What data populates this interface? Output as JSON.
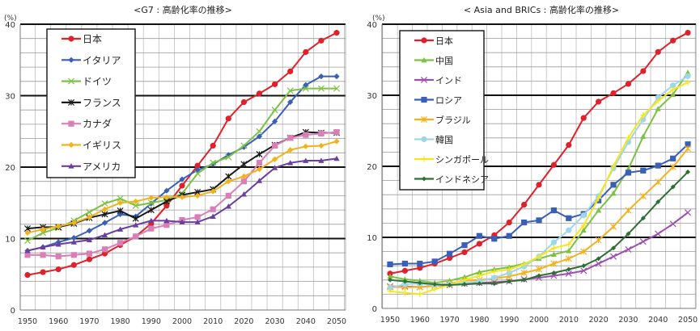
{
  "chart_data": [
    {
      "type": "line",
      "title": "<G7 : 高齢化率の推移>",
      "ylabel": "(%)",
      "xlabel": "",
      "ylim": [
        0,
        40
      ],
      "yticks": [
        0,
        10,
        20,
        30,
        40
      ],
      "xticks": [
        1950,
        1960,
        1970,
        1980,
        1990,
        2000,
        2010,
        2020,
        2030,
        2040,
        2050
      ],
      "x": [
        1950,
        1955,
        1960,
        1965,
        1970,
        1975,
        1980,
        1985,
        1990,
        1995,
        2000,
        2005,
        2010,
        2015,
        2020,
        2025,
        2030,
        2035,
        2040,
        2045,
        2050
      ],
      "grid": true,
      "legend": "top-left",
      "series": [
        {
          "name": "日本",
          "color": "#e0202a",
          "marker": "circle",
          "values": [
            4.9,
            5.3,
            5.7,
            6.3,
            7.1,
            7.9,
            9.1,
            10.3,
            12.1,
            14.6,
            17.4,
            20.2,
            23.0,
            26.8,
            29.1,
            30.3,
            31.6,
            33.4,
            36.1,
            37.7,
            38.8
          ]
        },
        {
          "name": "イタリア",
          "color": "#3a5fb8",
          "marker": "diamond",
          "values": [
            8.3,
            8.8,
            9.5,
            10.1,
            11.1,
            12.2,
            13.4,
            13.1,
            14.9,
            16.7,
            18.3,
            19.6,
            20.4,
            21.7,
            22.8,
            24.3,
            26.4,
            29.1,
            31.5,
            32.7,
            32.7
          ]
        },
        {
          "name": "ドイツ",
          "color": "#7cc242",
          "marker": "x",
          "values": [
            9.7,
            10.8,
            11.5,
            12.5,
            13.7,
            14.9,
            15.6,
            14.6,
            15.0,
            15.4,
            16.3,
            19.1,
            20.6,
            21.4,
            23.0,
            25.0,
            28.0,
            30.7,
            31.0,
            31.0,
            31.0
          ]
        },
        {
          "name": "フランス",
          "color": "#1a1a1a",
          "marker": "asterisk",
          "values": [
            11.4,
            11.6,
            11.6,
            12.1,
            12.9,
            13.4,
            13.9,
            12.8,
            14.0,
            15.2,
            16.1,
            16.5,
            16.9,
            18.7,
            20.4,
            21.8,
            23.1,
            24.1,
            24.9,
            24.8,
            24.8
          ]
        },
        {
          "name": "カナダ",
          "color": "#d97fb6",
          "marker": "square",
          "values": [
            7.7,
            7.7,
            7.5,
            7.7,
            7.9,
            8.5,
            9.4,
            10.3,
            11.4,
            11.9,
            12.6,
            13.0,
            14.1,
            16.0,
            18.0,
            20.6,
            23.0,
            24.1,
            24.5,
            24.7,
            24.9
          ]
        },
        {
          "name": "イギリス",
          "color": "#f2b21b",
          "marker": "diamond",
          "values": [
            10.8,
            11.3,
            11.7,
            12.2,
            13.0,
            14.1,
            15.0,
            15.2,
            15.7,
            15.8,
            15.8,
            16.0,
            16.6,
            18.0,
            18.7,
            19.7,
            21.1,
            22.4,
            22.9,
            23.0,
            23.6
          ]
        },
        {
          "name": "アメリカ",
          "color": "#6a3f9e",
          "marker": "triangle",
          "values": [
            8.3,
            8.8,
            9.2,
            9.5,
            9.8,
            10.5,
            11.3,
            11.9,
            12.5,
            12.5,
            12.3,
            12.3,
            13.1,
            14.5,
            16.2,
            18.1,
            19.9,
            20.6,
            20.9,
            20.9,
            21.2
          ]
        }
      ]
    },
    {
      "type": "line",
      "title": "< Asia and BRICs : 高齢化率の推移>",
      "ylabel": "(%)",
      "xlabel": "",
      "ylim": [
        0,
        40
      ],
      "yticks": [
        0,
        10,
        20,
        30,
        40
      ],
      "xticks": [
        1950,
        1960,
        1970,
        1980,
        1990,
        2000,
        2010,
        2020,
        2030,
        2040,
        2050
      ],
      "x": [
        1950,
        1955,
        1960,
        1965,
        1970,
        1975,
        1980,
        1985,
        1990,
        1995,
        2000,
        2005,
        2010,
        2015,
        2020,
        2025,
        2030,
        2035,
        2040,
        2045,
        2050
      ],
      "grid": true,
      "legend": "top-left",
      "series": [
        {
          "name": "日本",
          "color": "#e0202a",
          "marker": "circle",
          "values": [
            4.9,
            5.3,
            5.7,
            6.3,
            7.1,
            7.9,
            9.1,
            10.3,
            12.1,
            14.6,
            17.4,
            20.2,
            23.0,
            26.8,
            29.1,
            30.3,
            31.6,
            33.4,
            36.1,
            37.7,
            38.8
          ]
        },
        {
          "name": "中国",
          "color": "#7cc242",
          "marker": "triangle",
          "values": [
            4.5,
            4.1,
            3.9,
            3.6,
            3.9,
            4.4,
            5.1,
            5.5,
            5.8,
            6.3,
            7.0,
            7.6,
            8.1,
            11.0,
            13.8,
            16.2,
            19.6,
            24.2,
            28.1,
            30.1,
            33.2
          ]
        },
        {
          "name": "インド",
          "color": "#9b4fb0",
          "marker": "x",
          "values": [
            3.1,
            3.1,
            3.0,
            3.2,
            3.3,
            3.5,
            3.6,
            3.7,
            3.8,
            4.1,
            4.3,
            4.6,
            4.9,
            5.3,
            6.3,
            7.3,
            8.3,
            9.4,
            10.5,
            11.9,
            13.5
          ]
        },
        {
          "name": "ロシア",
          "color": "#3a5fb8",
          "marker": "square",
          "values": [
            6.2,
            6.3,
            6.3,
            6.6,
            7.7,
            8.9,
            10.2,
            9.8,
            10.2,
            12.1,
            12.4,
            13.8,
            12.7,
            13.3,
            15.2,
            17.4,
            19.1,
            19.4,
            20.1,
            21.1,
            23.1
          ]
        },
        {
          "name": "ブラジル",
          "color": "#f2b21b",
          "marker": "asterisk",
          "values": [
            3.0,
            3.0,
            3.0,
            3.2,
            3.5,
            3.9,
            4.0,
            4.2,
            4.5,
            5.0,
            5.5,
            6.3,
            7.0,
            8.0,
            9.6,
            11.5,
            13.8,
            15.8,
            17.8,
            19.9,
            22.5
          ]
        },
        {
          "name": "韓国",
          "color": "#9fd6ea",
          "marker": "circle",
          "values": [
            2.9,
            3.4,
            3.5,
            3.3,
            3.4,
            3.6,
            3.8,
            4.3,
            5.0,
            5.9,
            7.3,
            9.3,
            11.0,
            13.1,
            15.8,
            19.7,
            23.4,
            26.6,
            29.7,
            31.4,
            32.7
          ]
        },
        {
          "name": "シンガポール",
          "color": "#f5e61c",
          "marker": "plus",
          "values": [
            2.4,
            2.2,
            2.0,
            2.7,
            3.3,
            4.0,
            4.6,
            5.2,
            5.5,
            6.2,
            7.3,
            8.5,
            9.0,
            11.7,
            15.5,
            20.0,
            24.0,
            27.2,
            29.2,
            30.8,
            31.8
          ]
        },
        {
          "name": "インドネシア",
          "color": "#2e7034",
          "marker": "smalldiamond",
          "values": [
            4.0,
            3.8,
            3.6,
            3.4,
            3.3,
            3.4,
            3.5,
            3.5,
            3.8,
            4.0,
            4.6,
            5.0,
            5.5,
            6.0,
            7.0,
            8.5,
            10.5,
            12.7,
            15.0,
            17.1,
            19.2
          ]
        }
      ]
    }
  ]
}
